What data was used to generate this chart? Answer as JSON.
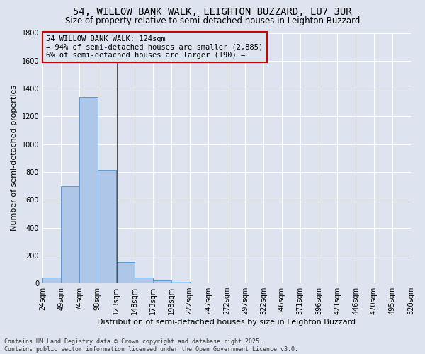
{
  "title": "54, WILLOW BANK WALK, LEIGHTON BUZZARD, LU7 3UR",
  "subtitle": "Size of property relative to semi-detached houses in Leighton Buzzard",
  "xlabel": "Distribution of semi-detached houses by size in Leighton Buzzard",
  "ylabel": "Number of semi-detached properties",
  "footnote": "Contains HM Land Registry data © Crown copyright and database right 2025.\nContains public sector information licensed under the Open Government Licence v3.0.",
  "annotation_title": "54 WILLOW BANK WALK: 124sqm",
  "annotation_line1": "← 94% of semi-detached houses are smaller (2,885)",
  "annotation_line2": "6% of semi-detached houses are larger (190) →",
  "property_size": 124,
  "bar_edges": [
    24,
    49,
    74,
    98,
    123,
    148,
    173,
    198,
    222,
    247,
    272,
    297,
    322,
    346,
    371,
    396,
    421,
    446,
    470,
    495,
    520
  ],
  "bar_values": [
    42,
    700,
    1340,
    815,
    152,
    42,
    22,
    12,
    0,
    0,
    0,
    0,
    0,
    0,
    0,
    0,
    0,
    0,
    0,
    0
  ],
  "bar_color": "#aec6e8",
  "bar_edge_color": "#5b9bd5",
  "vline_color": "#555555",
  "ylim": [
    0,
    1800
  ],
  "yticks": [
    0,
    200,
    400,
    600,
    800,
    1000,
    1200,
    1400,
    1600,
    1800
  ],
  "background_color": "#dde4f0",
  "grid_color": "#ffffff",
  "annotation_box_color": "#cc0000",
  "title_fontsize": 10,
  "subtitle_fontsize": 8.5,
  "xlabel_fontsize": 8,
  "ylabel_fontsize": 8,
  "tick_fontsize": 7,
  "footnote_fontsize": 6,
  "annotation_fontsize": 7.5
}
